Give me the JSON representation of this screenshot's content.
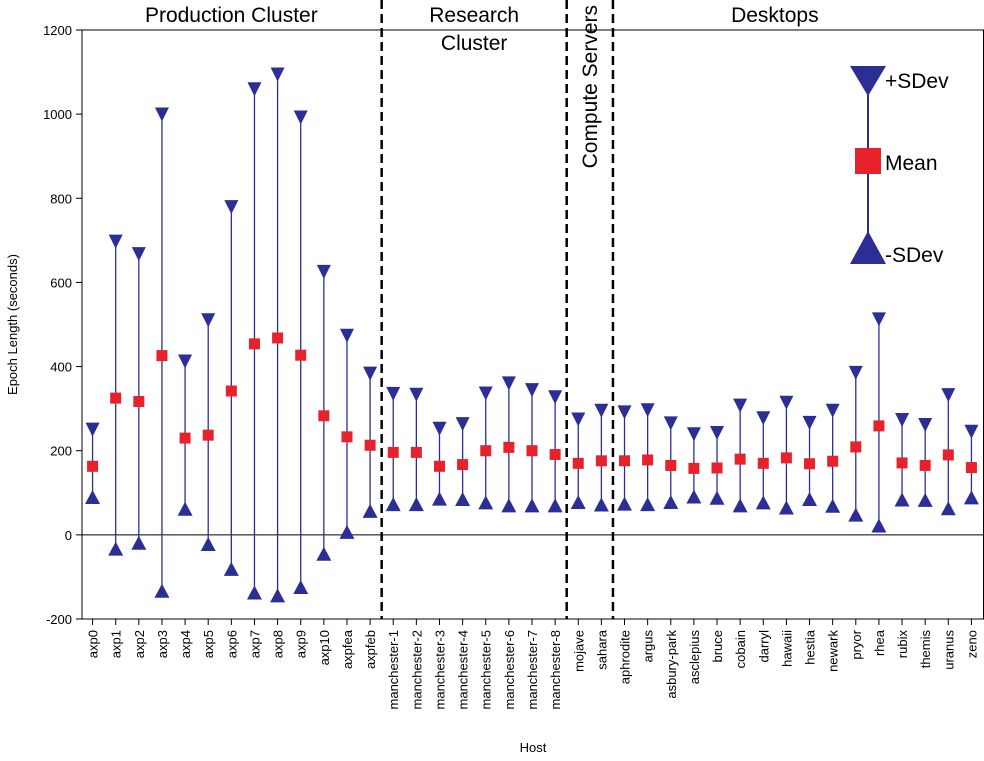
{
  "chart_data": {
    "type": "errorbar",
    "xlabel": "Host",
    "ylabel": "Epoch Length (seconds)",
    "ylim": [
      -200,
      1200
    ],
    "yticks": [
      -200,
      0,
      200,
      400,
      600,
      800,
      1000,
      1200
    ],
    "legend": {
      "placement": "top-right",
      "plus_label": "+SDev",
      "mean_label": "Mean",
      "minus_label": "-SDev"
    },
    "colors": {
      "mean": "#e8222b",
      "sdev": "#2b2f95",
      "line": "#2b2f95"
    },
    "groups": [
      {
        "label_lines": [
          "Production Cluster"
        ],
        "start": 0,
        "end": 12,
        "orientation": "horizontal"
      },
      {
        "label_lines": [
          "Research",
          "Cluster"
        ],
        "start": 13,
        "end": 20,
        "orientation": "horizontal"
      },
      {
        "label_lines": [
          "Compute Servers"
        ],
        "start": 21,
        "end": 22,
        "orientation": "vertical"
      },
      {
        "label_lines": [
          "Desktops"
        ],
        "start": 23,
        "end": 36,
        "orientation": "horizontal"
      }
    ],
    "hosts": [
      {
        "name": "axp0",
        "mean": 163,
        "plus": 243,
        "minus": 83
      },
      {
        "name": "axp1",
        "mean": 325,
        "plus": 690,
        "minus": -40
      },
      {
        "name": "axp2",
        "mean": 317,
        "plus": 660,
        "minus": -26
      },
      {
        "name": "axp3",
        "mean": 426,
        "plus": 992,
        "minus": -140
      },
      {
        "name": "axp4",
        "mean": 230,
        "plus": 405,
        "minus": 55
      },
      {
        "name": "axp5",
        "mean": 237,
        "plus": 503,
        "minus": -29
      },
      {
        "name": "axp6",
        "mean": 342,
        "plus": 772,
        "minus": -88
      },
      {
        "name": "axp7",
        "mean": 454,
        "plus": 1052,
        "minus": -144
      },
      {
        "name": "axp8",
        "mean": 468,
        "plus": 1087,
        "minus": -151
      },
      {
        "name": "axp9",
        "mean": 427,
        "plus": 985,
        "minus": -131
      },
      {
        "name": "axp10",
        "mean": 283,
        "plus": 618,
        "minus": -52
      },
      {
        "name": "axpfea",
        "mean": 233,
        "plus": 466,
        "minus": 0
      },
      {
        "name": "axpfeb",
        "mean": 213,
        "plus": 376,
        "minus": 50
      },
      {
        "name": "manchester-1",
        "mean": 196,
        "plus": 328,
        "minus": 66
      },
      {
        "name": "manchester-2",
        "mean": 196,
        "plus": 326,
        "minus": 66
      },
      {
        "name": "manchester-3",
        "mean": 163,
        "plus": 245,
        "minus": 79
      },
      {
        "name": "manchester-4",
        "mean": 167,
        "plus": 256,
        "minus": 78
      },
      {
        "name": "manchester-5",
        "mean": 200,
        "plus": 329,
        "minus": 70
      },
      {
        "name": "manchester-6",
        "mean": 208,
        "plus": 353,
        "minus": 63
      },
      {
        "name": "manchester-7",
        "mean": 200,
        "plus": 337,
        "minus": 63
      },
      {
        "name": "manchester-8",
        "mean": 191,
        "plus": 320,
        "minus": 63
      },
      {
        "name": "mojave",
        "mean": 170,
        "plus": 267,
        "minus": 71
      },
      {
        "name": "sahara",
        "mean": 176,
        "plus": 288,
        "minus": 65
      },
      {
        "name": "aphrodite",
        "mean": 176,
        "plus": 284,
        "minus": 67
      },
      {
        "name": "argus",
        "mean": 178,
        "plus": 289,
        "minus": 66
      },
      {
        "name": "asbury-park",
        "mean": 165,
        "plus": 258,
        "minus": 71
      },
      {
        "name": "asclepius",
        "mean": 158,
        "plus": 232,
        "minus": 84
      },
      {
        "name": "bruce",
        "mean": 159,
        "plus": 235,
        "minus": 81
      },
      {
        "name": "cobain",
        "mean": 180,
        "plus": 300,
        "minus": 63
      },
      {
        "name": "darryl",
        "mean": 170,
        "plus": 270,
        "minus": 70
      },
      {
        "name": "hawaii",
        "mean": 183,
        "plus": 307,
        "minus": 58
      },
      {
        "name": "hestia",
        "mean": 169,
        "plus": 259,
        "minus": 78
      },
      {
        "name": "newark",
        "mean": 175,
        "plus": 288,
        "minus": 62
      },
      {
        "name": "pryor",
        "mean": 209,
        "plus": 378,
        "minus": 41
      },
      {
        "name": "rhea",
        "mean": 259,
        "plus": 505,
        "minus": 15
      },
      {
        "name": "rubix",
        "mean": 171,
        "plus": 266,
        "minus": 77
      },
      {
        "name": "themis",
        "mean": 165,
        "plus": 254,
        "minus": 76
      },
      {
        "name": "uranus",
        "mean": 190,
        "plus": 325,
        "minus": 56
      },
      {
        "name": "zeno",
        "mean": 160,
        "plus": 238,
        "minus": 82
      }
    ]
  }
}
